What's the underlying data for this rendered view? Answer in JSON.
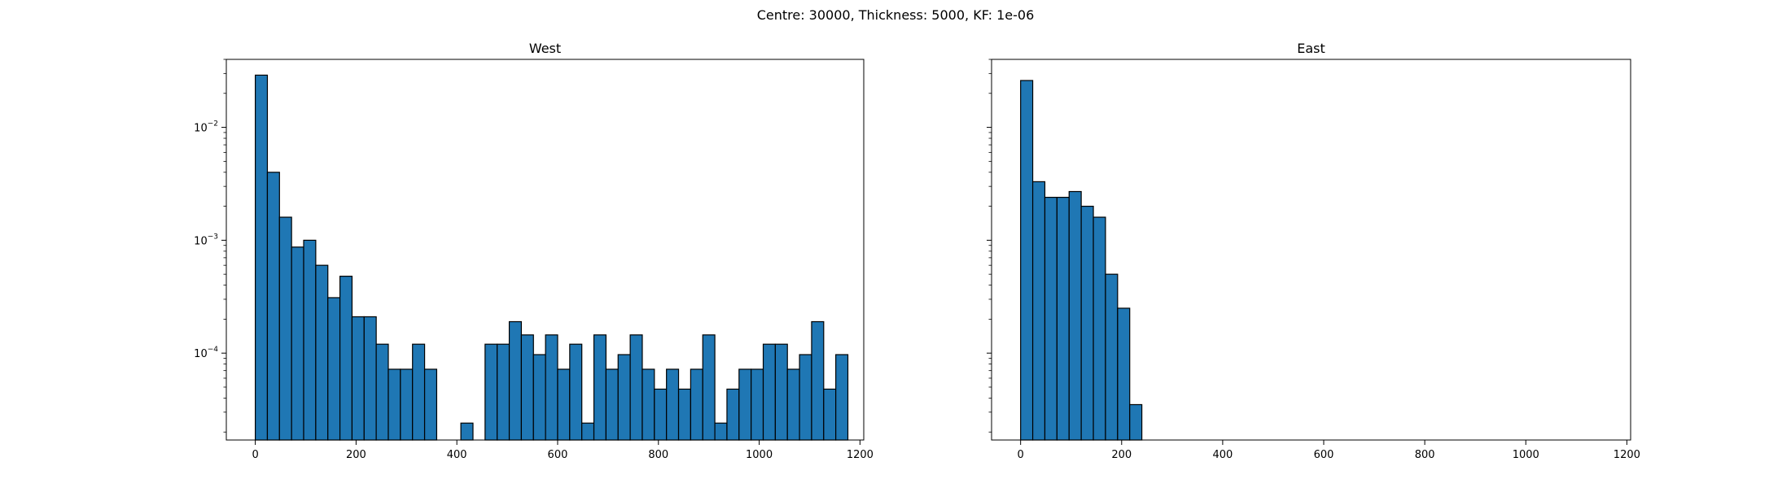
{
  "figure": {
    "title": "Centre: 30000, Thickness: 5000, KF: 1e-06"
  },
  "colors": {
    "bar_fill": "#1f77b4",
    "bar_edge": "#000000",
    "axes": "#000000",
    "background": "#ffffff"
  },
  "chart_data": [
    {
      "type": "bar",
      "subtype": "histogram",
      "title": "West",
      "xlabel": "",
      "ylabel": "",
      "yscale": "log",
      "xlim": [
        -57.5,
        1207.5
      ],
      "ylim": [
        1.7e-05,
        0.04
      ],
      "xticks": [
        0,
        200,
        400,
        600,
        800,
        1000,
        1200
      ],
      "xtick_labels": [
        "0",
        "200",
        "400",
        "600",
        "800",
        "1000",
        "1200"
      ],
      "yticks": [
        0.0001,
        0.001,
        0.01
      ],
      "ytick_labels": [
        {
          "base": "10",
          "exponent": "−4"
        },
        {
          "base": "10",
          "exponent": "−3"
        },
        {
          "base": "10",
          "exponent": "−2"
        }
      ],
      "grid": false,
      "bin_width": 24,
      "bin_start": 0,
      "values": [
        0.029,
        0.004,
        0.0016,
        0.00087,
        0.001,
        0.0006,
        0.00031,
        0.00048,
        0.00021,
        0.00021,
        0.00012,
        7.2e-05,
        7.2e-05,
        0.00012,
        7.2e-05,
        0,
        0,
        2.4e-05,
        0,
        0.00012,
        0.00012,
        0.00019,
        0.000145,
        9.7e-05,
        0.000145,
        7.2e-05,
        0.00012,
        2.4e-05,
        0.000145,
        7.2e-05,
        9.7e-05,
        0.000145,
        7.2e-05,
        4.8e-05,
        7.2e-05,
        4.8e-05,
        7.2e-05,
        0.000145,
        2.4e-05,
        4.8e-05,
        7.2e-05,
        7.2e-05,
        0.00012,
        0.00012,
        7.2e-05,
        9.7e-05,
        0.00019,
        4.8e-05,
        9.7e-05
      ]
    },
    {
      "type": "bar",
      "subtype": "histogram",
      "title": "East",
      "xlabel": "",
      "ylabel": "",
      "yscale": "log",
      "xlim": [
        -57.5,
        1207.5
      ],
      "ylim": [
        1.7e-05,
        0.04
      ],
      "xticks": [
        0,
        200,
        400,
        600,
        800,
        1000,
        1200
      ],
      "xtick_labels": [
        "0",
        "200",
        "400",
        "600",
        "800",
        "1000",
        "1200"
      ],
      "yticks": [
        0.0001,
        0.001,
        0.01
      ],
      "ytick_labels": [],
      "grid": false,
      "bin_width": 24,
      "bin_start": 0,
      "values": [
        0.026,
        0.0033,
        0.0024,
        0.0024,
        0.0027,
        0.002,
        0.0016,
        0.0005,
        0.00025,
        3.5e-05
      ]
    }
  ]
}
